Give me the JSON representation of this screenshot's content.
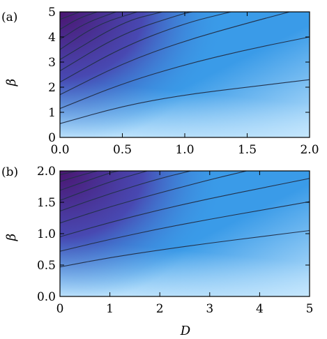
{
  "chart_data": [
    {
      "panel_label": "(a)",
      "type": "heatmap",
      "xlabel": "",
      "ylabel": "β",
      "xlim": [
        0,
        2
      ],
      "ylim": [
        0,
        5
      ],
      "x_ticks": [
        "0.0",
        "0.5",
        "1.0",
        "1.5",
        "2.0"
      ],
      "y_ticks": [
        "0",
        "1",
        "2",
        "3",
        "4",
        "5"
      ],
      "contours": [
        {
          "x": [
            0,
            0.5,
            1.0,
            1.5,
            2.0
          ],
          "y": [
            0.55,
            1.25,
            1.7,
            2.0,
            2.3
          ]
        },
        {
          "x": [
            0,
            0.5,
            1.0,
            1.5,
            2.0
          ],
          "y": [
            1.15,
            2.15,
            2.9,
            3.5,
            4.0
          ]
        },
        {
          "x": [
            0,
            0.5,
            1.0,
            1.5,
            1.84
          ],
          "y": [
            1.7,
            2.95,
            3.85,
            4.55,
            5.0
          ]
        },
        {
          "x": [
            0,
            0.5,
            1.0,
            1.37
          ],
          "y": [
            2.2,
            3.6,
            4.55,
            5.0
          ]
        },
        {
          "x": [
            0,
            0.5,
            1.0,
            1.06
          ],
          "y": [
            2.65,
            4.15,
            4.95,
            5.0
          ]
        },
        {
          "x": [
            0,
            0.5,
            0.82
          ],
          "y": [
            3.1,
            4.6,
            5.0
          ]
        },
        {
          "x": [
            0,
            0.3,
            0.62
          ],
          "y": [
            3.5,
            4.5,
            5.0
          ]
        },
        {
          "x": [
            0,
            0.2,
            0.45
          ],
          "y": [
            3.9,
            4.55,
            5.0
          ]
        },
        {
          "x": [
            0,
            0.15,
            0.3
          ],
          "y": [
            4.3,
            4.75,
            5.0
          ]
        },
        {
          "x": [
            0,
            0.16
          ],
          "y": [
            4.7,
            5.0
          ]
        }
      ]
    },
    {
      "panel_label": "(b)",
      "type": "heatmap",
      "xlabel": "D",
      "ylabel": "β",
      "xlim": [
        0,
        5
      ],
      "ylim": [
        0,
        2
      ],
      "x_ticks": [
        "0",
        "1",
        "2",
        "3",
        "4",
        "5"
      ],
      "y_ticks": [
        "0.0",
        "0.5",
        "1.0",
        "1.5",
        "2.0"
      ],
      "contours": [
        {
          "x": [
            0,
            1,
            2,
            3,
            4,
            5
          ],
          "y": [
            0.47,
            0.62,
            0.74,
            0.85,
            0.95,
            1.05
          ]
        },
        {
          "x": [
            0,
            1,
            2,
            3,
            4,
            5
          ],
          "y": [
            0.72,
            0.91,
            1.08,
            1.23,
            1.37,
            1.51
          ]
        },
        {
          "x": [
            0,
            1,
            2,
            3,
            4,
            5
          ],
          "y": [
            0.95,
            1.18,
            1.38,
            1.56,
            1.72,
            1.88
          ]
        },
        {
          "x": [
            0,
            1,
            2,
            3,
            3.74
          ],
          "y": [
            1.17,
            1.43,
            1.65,
            1.86,
            2.0
          ]
        },
        {
          "x": [
            0,
            1,
            2,
            2.62
          ],
          "y": [
            1.36,
            1.64,
            1.88,
            2.0
          ]
        },
        {
          "x": [
            0,
            1,
            1.75
          ],
          "y": [
            1.53,
            1.83,
            2.0
          ]
        },
        {
          "x": [
            0,
            1,
            1.18
          ],
          "y": [
            1.69,
            1.97,
            2.0
          ]
        },
        {
          "x": [
            0,
            0.5,
            0.75
          ],
          "y": [
            1.83,
            1.95,
            2.0
          ]
        },
        {
          "x": [
            0,
            0.35
          ],
          "y": [
            1.94,
            2.0
          ]
        }
      ]
    }
  ],
  "colors": {
    "low": "#cbeafe",
    "mid": "#3a9be8",
    "high": "#4a1570",
    "contour": "#23314a"
  }
}
